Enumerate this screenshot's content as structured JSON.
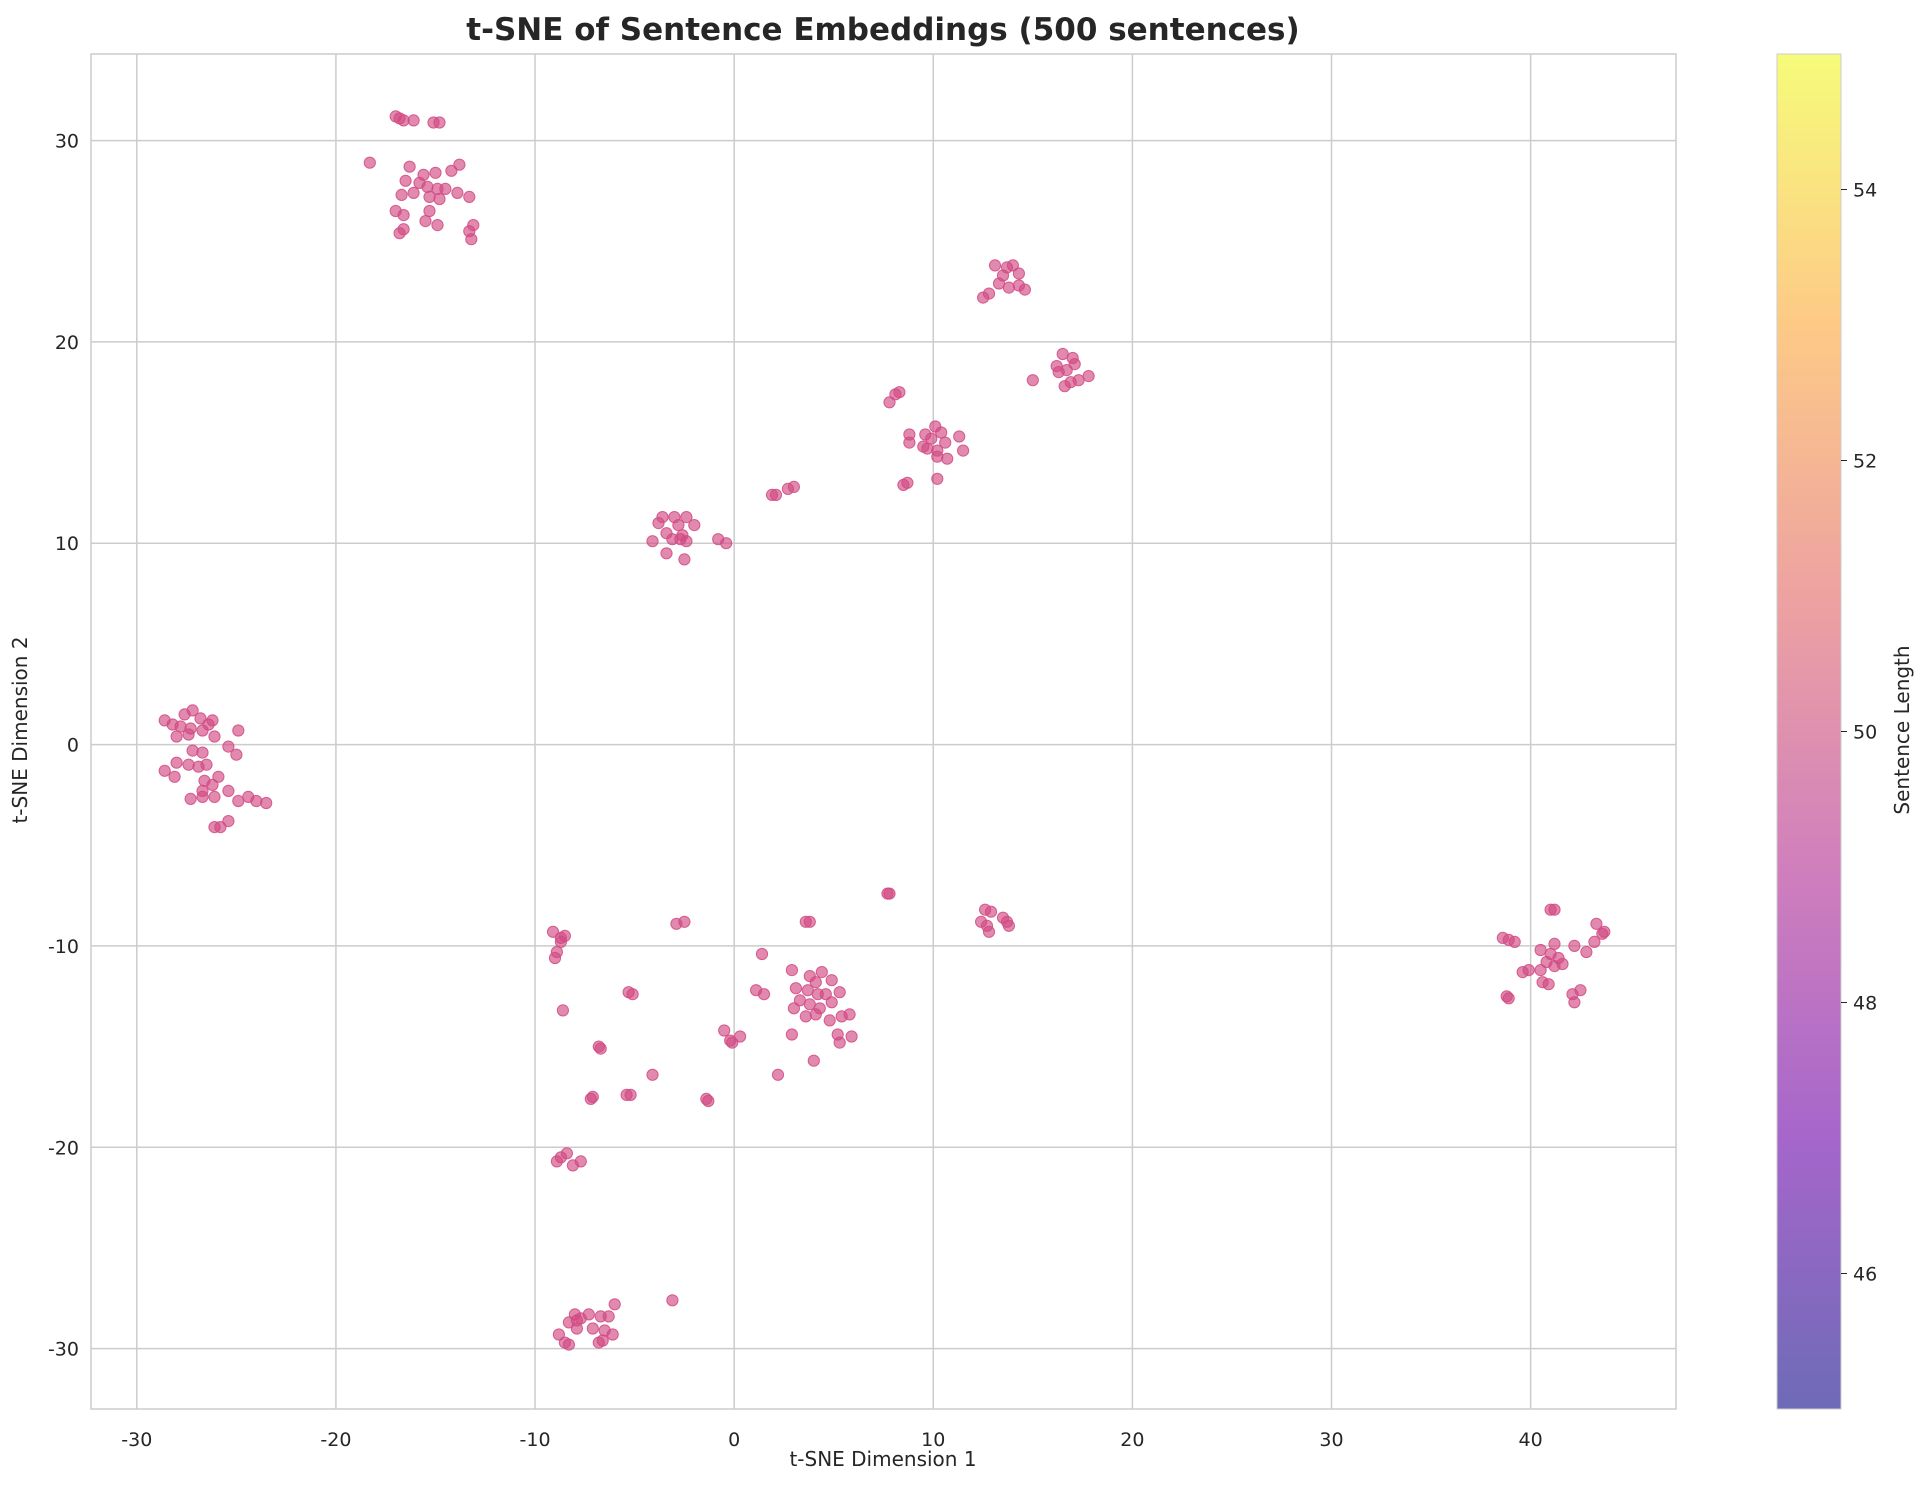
{
  "chart_data": {
    "type": "scatter",
    "title": "t-SNE of Sentence Embeddings (500 sentences)",
    "xlabel": "t-SNE Dimension 1",
    "ylabel": "t-SNE Dimension 2",
    "xlim": [
      -32.3,
      47.3
    ],
    "ylim": [
      -33.0,
      34.3
    ],
    "x_ticks": [
      -30,
      -20,
      -10,
      0,
      10,
      20,
      30,
      40
    ],
    "y_ticks": [
      -30,
      -20,
      -10,
      0,
      10,
      20,
      30
    ],
    "x_tick_labels": [
      "-30",
      "-20",
      "-10",
      "0",
      "10",
      "20",
      "30",
      "40"
    ],
    "y_tick_labels": [
      "-30",
      "-20",
      "-10",
      "0",
      "10",
      "20",
      "30"
    ],
    "grid": true,
    "point_color": "#d14a82",
    "point_alpha": 0.65,
    "colorbar": {
      "label": "Sentence Length",
      "range": [
        45.0,
        55.0
      ],
      "ticks": [
        46,
        48,
        50,
        52,
        54
      ],
      "tick_labels": [
        "46",
        "48",
        "50",
        "52",
        "54"
      ],
      "colormap": "plasma",
      "colors": [
        "#0d0887",
        "#6a00a8",
        "#b12a90",
        "#e16462",
        "#fca636",
        "#f0f921"
      ],
      "alpha": 0.6
    },
    "points": [
      [
        -17.0,
        31.2
      ],
      [
        -16.8,
        31.1
      ],
      [
        -16.6,
        31.0
      ],
      [
        -16.1,
        31.0
      ],
      [
        -15.1,
        30.9
      ],
      [
        -14.8,
        30.9
      ],
      [
        -18.3,
        28.9
      ],
      [
        -16.3,
        28.7
      ],
      [
        -15.6,
        28.3
      ],
      [
        -15.0,
        28.4
      ],
      [
        -14.2,
        28.5
      ],
      [
        -13.8,
        28.8
      ],
      [
        -16.5,
        28.0
      ],
      [
        -15.8,
        27.9
      ],
      [
        -15.4,
        27.7
      ],
      [
        -14.9,
        27.6
      ],
      [
        -14.5,
        27.6
      ],
      [
        -16.7,
        27.3
      ],
      [
        -16.1,
        27.4
      ],
      [
        -15.3,
        27.2
      ],
      [
        -14.8,
        27.1
      ],
      [
        -13.9,
        27.4
      ],
      [
        -13.3,
        27.2
      ],
      [
        -17.0,
        26.5
      ],
      [
        -16.6,
        26.3
      ],
      [
        -15.3,
        26.5
      ],
      [
        -16.6,
        25.6
      ],
      [
        -16.8,
        25.4
      ],
      [
        -15.5,
        26.0
      ],
      [
        -14.9,
        25.8
      ],
      [
        -13.3,
        25.5
      ],
      [
        -13.1,
        25.8
      ],
      [
        -13.2,
        25.1
      ],
      [
        13.1,
        23.8
      ],
      [
        13.7,
        23.7
      ],
      [
        14.0,
        23.8
      ],
      [
        13.5,
        23.3
      ],
      [
        14.3,
        23.4
      ],
      [
        13.3,
        22.9
      ],
      [
        14.3,
        22.8
      ],
      [
        14.6,
        22.6
      ],
      [
        12.8,
        22.4
      ],
      [
        12.5,
        22.2
      ],
      [
        13.8,
        22.7
      ],
      [
        16.2,
        18.8
      ],
      [
        16.5,
        19.4
      ],
      [
        17.0,
        19.2
      ],
      [
        16.7,
        18.6
      ],
      [
        16.3,
        18.5
      ],
      [
        17.1,
        18.9
      ],
      [
        17.8,
        18.3
      ],
      [
        17.3,
        18.1
      ],
      [
        16.6,
        17.8
      ],
      [
        16.9,
        18.0
      ],
      [
        15.0,
        18.1
      ],
      [
        8.3,
        17.5
      ],
      [
        8.1,
        17.4
      ],
      [
        7.8,
        17.0
      ],
      [
        9.6,
        15.4
      ],
      [
        10.1,
        15.8
      ],
      [
        10.4,
        15.5
      ],
      [
        9.9,
        15.2
      ],
      [
        9.5,
        14.8
      ],
      [
        10.6,
        15.0
      ],
      [
        10.2,
        14.6
      ],
      [
        9.7,
        14.7
      ],
      [
        11.3,
        15.3
      ],
      [
        11.5,
        14.6
      ],
      [
        10.7,
        14.2
      ],
      [
        10.2,
        14.3
      ],
      [
        8.8,
        15.4
      ],
      [
        8.8,
        15.0
      ],
      [
        10.2,
        13.2
      ],
      [
        8.7,
        13.0
      ],
      [
        8.5,
        12.9
      ],
      [
        1.9,
        12.4
      ],
      [
        2.1,
        12.4
      ],
      [
        2.7,
        12.7
      ],
      [
        3.0,
        12.8
      ],
      [
        -3.6,
        11.3
      ],
      [
        -3.0,
        11.3
      ],
      [
        -2.4,
        11.3
      ],
      [
        -3.8,
        11.0
      ],
      [
        -2.8,
        10.9
      ],
      [
        -2.0,
        10.9
      ],
      [
        -3.4,
        10.5
      ],
      [
        -2.6,
        10.4
      ],
      [
        -3.1,
        10.2
      ],
      [
        -2.4,
        10.1
      ],
      [
        -4.1,
        10.1
      ],
      [
        -2.7,
        10.2
      ],
      [
        -0.8,
        10.2
      ],
      [
        -0.4,
        10.0
      ],
      [
        -3.4,
        9.5
      ],
      [
        -2.5,
        9.2
      ],
      [
        -28.6,
        1.2
      ],
      [
        -28.2,
        1.0
      ],
      [
        -27.6,
        1.5
      ],
      [
        -27.2,
        1.7
      ],
      [
        -26.8,
        1.3
      ],
      [
        -26.2,
        1.2
      ],
      [
        -27.8,
        0.9
      ],
      [
        -27.3,
        0.8
      ],
      [
        -26.7,
        0.7
      ],
      [
        -26.4,
        1.0
      ],
      [
        -28.0,
        0.4
      ],
      [
        -27.4,
        0.5
      ],
      [
        -26.1,
        0.4
      ],
      [
        -24.9,
        0.7
      ],
      [
        -25.4,
        -0.1
      ],
      [
        -25.0,
        -0.5
      ],
      [
        -27.2,
        -0.3
      ],
      [
        -26.7,
        -0.4
      ],
      [
        -28.6,
        -1.3
      ],
      [
        -28.0,
        -0.9
      ],
      [
        -27.4,
        -1.0
      ],
      [
        -26.9,
        -1.1
      ],
      [
        -26.5,
        -1.0
      ],
      [
        -28.1,
        -1.6
      ],
      [
        -26.6,
        -1.8
      ],
      [
        -25.9,
        -1.6
      ],
      [
        -26.2,
        -2.0
      ],
      [
        -26.7,
        -2.3
      ],
      [
        -27.3,
        -2.7
      ],
      [
        -26.7,
        -2.6
      ],
      [
        -26.1,
        -2.6
      ],
      [
        -25.4,
        -2.3
      ],
      [
        -24.9,
        -2.8
      ],
      [
        -24.4,
        -2.6
      ],
      [
        -24.0,
        -2.8
      ],
      [
        -23.5,
        -2.9
      ],
      [
        -25.4,
        -3.8
      ],
      [
        -25.8,
        -4.1
      ],
      [
        -26.1,
        -4.1
      ],
      [
        7.8,
        -7.4
      ],
      [
        7.7,
        -7.4
      ],
      [
        12.6,
        -8.2
      ],
      [
        12.9,
        -8.3
      ],
      [
        12.4,
        -8.8
      ],
      [
        12.7,
        -9.0
      ],
      [
        12.8,
        -9.3
      ],
      [
        13.5,
        -8.6
      ],
      [
        13.7,
        -8.8
      ],
      [
        13.8,
        -9.0
      ],
      [
        3.6,
        -8.8
      ],
      [
        3.8,
        -8.8
      ],
      [
        -2.9,
        -8.9
      ],
      [
        -2.5,
        -8.8
      ],
      [
        -9.1,
        -9.3
      ],
      [
        -8.7,
        -9.6
      ],
      [
        -8.5,
        -9.5
      ],
      [
        -8.7,
        -9.8
      ],
      [
        -8.9,
        -10.3
      ],
      [
        -9.0,
        -10.6
      ],
      [
        -8.6,
        -13.2
      ],
      [
        41.0,
        -8.2
      ],
      [
        41.2,
        -8.2
      ],
      [
        43.3,
        -8.9
      ],
      [
        43.7,
        -9.3
      ],
      [
        43.6,
        -9.4
      ],
      [
        38.6,
        -9.6
      ],
      [
        38.9,
        -9.7
      ],
      [
        39.2,
        -9.8
      ],
      [
        41.2,
        -9.9
      ],
      [
        42.2,
        -10.0
      ],
      [
        40.5,
        -10.2
      ],
      [
        41.0,
        -10.4
      ],
      [
        41.4,
        -10.6
      ],
      [
        42.8,
        -10.3
      ],
      [
        43.2,
        -9.8
      ],
      [
        40.8,
        -10.8
      ],
      [
        41.6,
        -10.9
      ],
      [
        40.5,
        -11.2
      ],
      [
        39.9,
        -11.2
      ],
      [
        39.6,
        -11.3
      ],
      [
        41.2,
        -11.0
      ],
      [
        40.6,
        -11.8
      ],
      [
        40.9,
        -11.9
      ],
      [
        42.1,
        -12.4
      ],
      [
        42.5,
        -12.2
      ],
      [
        42.2,
        -12.8
      ],
      [
        38.8,
        -12.5
      ],
      [
        38.9,
        -12.6
      ],
      [
        1.4,
        -10.4
      ],
      [
        2.9,
        -11.2
      ],
      [
        3.8,
        -11.5
      ],
      [
        4.4,
        -11.3
      ],
      [
        4.1,
        -11.8
      ],
      [
        4.9,
        -11.7
      ],
      [
        3.1,
        -12.1
      ],
      [
        3.7,
        -12.2
      ],
      [
        4.2,
        -12.4
      ],
      [
        4.6,
        -12.4
      ],
      [
        5.3,
        -12.3
      ],
      [
        1.1,
        -12.2
      ],
      [
        1.5,
        -12.4
      ],
      [
        3.3,
        -12.7
      ],
      [
        3.8,
        -12.9
      ],
      [
        4.3,
        -13.1
      ],
      [
        4.9,
        -12.8
      ],
      [
        3.0,
        -13.1
      ],
      [
        3.6,
        -13.5
      ],
      [
        4.1,
        -13.4
      ],
      [
        4.8,
        -13.7
      ],
      [
        5.4,
        -13.5
      ],
      [
        5.8,
        -13.4
      ],
      [
        5.2,
        -14.4
      ],
      [
        5.9,
        -14.5
      ],
      [
        5.3,
        -14.8
      ],
      [
        2.9,
        -14.4
      ],
      [
        4.0,
        -15.7
      ],
      [
        -0.5,
        -14.2
      ],
      [
        -0.2,
        -14.7
      ],
      [
        0.3,
        -14.5
      ],
      [
        -0.1,
        -14.8
      ],
      [
        -5.3,
        -12.3
      ],
      [
        -5.1,
        -12.4
      ],
      [
        -6.8,
        -15.0
      ],
      [
        -6.7,
        -15.1
      ],
      [
        -4.1,
        -16.4
      ],
      [
        2.2,
        -16.4
      ],
      [
        -7.1,
        -17.5
      ],
      [
        -7.2,
        -17.6
      ],
      [
        -5.4,
        -17.4
      ],
      [
        -5.2,
        -17.4
      ],
      [
        -1.4,
        -17.6
      ],
      [
        -1.3,
        -17.7
      ],
      [
        -8.4,
        -20.3
      ],
      [
        -8.7,
        -20.5
      ],
      [
        -8.9,
        -20.7
      ],
      [
        -8.1,
        -20.9
      ],
      [
        -7.7,
        -20.7
      ],
      [
        -3.1,
        -27.6
      ],
      [
        -6.0,
        -27.8
      ],
      [
        -8.0,
        -28.3
      ],
      [
        -7.7,
        -28.5
      ],
      [
        -7.3,
        -28.3
      ],
      [
        -6.7,
        -28.4
      ],
      [
        -6.3,
        -28.4
      ],
      [
        -8.3,
        -28.7
      ],
      [
        -7.9,
        -29.0
      ],
      [
        -7.1,
        -29.0
      ],
      [
        -6.5,
        -29.1
      ],
      [
        -6.1,
        -29.3
      ],
      [
        -8.8,
        -29.3
      ],
      [
        -8.5,
        -29.7
      ],
      [
        -8.3,
        -29.8
      ],
      [
        -7.9,
        -28.6
      ],
      [
        -6.8,
        -29.7
      ],
      [
        -6.6,
        -29.6
      ]
    ]
  }
}
